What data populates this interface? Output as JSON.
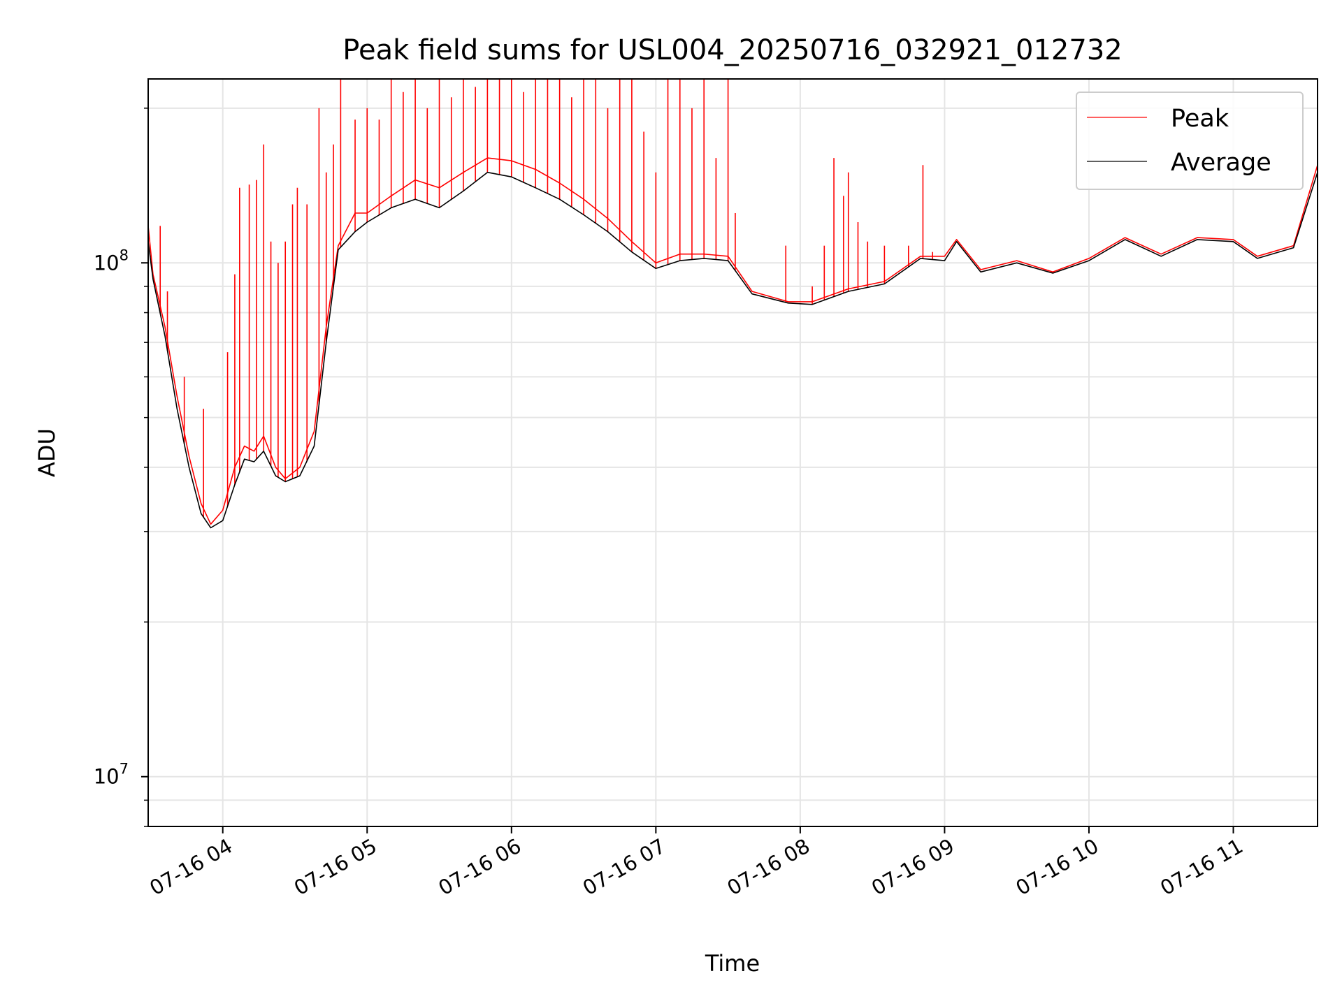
{
  "chart_data": {
    "type": "line",
    "title": "Peak field sums for USL004_20250716_032921_012732",
    "xlabel": "Time",
    "ylabel": "ADU",
    "y_scale": "log",
    "ylim": [
      8000000,
      228000000
    ],
    "xlim": [
      "2025-07-16 03:29",
      "2025-07-16 11:35"
    ],
    "x_ticks": [
      {
        "x": "2025-07-16 04:00",
        "label": "07-16 04"
      },
      {
        "x": "2025-07-16 05:00",
        "label": "07-16 05"
      },
      {
        "x": "2025-07-16 06:00",
        "label": "07-16 06"
      },
      {
        "x": "2025-07-16 07:00",
        "label": "07-16 07"
      },
      {
        "x": "2025-07-16 08:00",
        "label": "07-16 08"
      },
      {
        "x": "2025-07-16 09:00",
        "label": "07-16 09"
      },
      {
        "x": "2025-07-16 10:00",
        "label": "07-16 10"
      },
      {
        "x": "2025-07-16 11:00",
        "label": "07-16 11"
      }
    ],
    "y_ticks": [
      {
        "value": 10000000,
        "base": "10",
        "exp": "7"
      },
      {
        "value": 100000000,
        "base": "10",
        "exp": "8"
      }
    ],
    "grid": true,
    "legend_position": "top-right",
    "series": [
      {
        "name": "Peak",
        "color": "#ff0000",
        "points": [
          [
            "2025-07-16 03:29",
            118000000
          ],
          [
            "2025-07-16 03:31",
            95000000
          ],
          [
            "2025-07-16 03:36",
            75000000
          ],
          [
            "2025-07-16 03:41",
            55000000
          ],
          [
            "2025-07-16 03:46",
            42000000
          ],
          [
            "2025-07-16 03:51",
            34000000
          ],
          [
            "2025-07-16 03:55",
            31000000
          ],
          [
            "2025-07-16 04:00",
            33000000
          ],
          [
            "2025-07-16 04:05",
            40000000
          ],
          [
            "2025-07-16 04:09",
            44000000
          ],
          [
            "2025-07-16 04:13",
            43000000
          ],
          [
            "2025-07-16 04:17",
            46000000
          ],
          [
            "2025-07-16 04:22",
            40000000
          ],
          [
            "2025-07-16 04:26",
            38000000
          ],
          [
            "2025-07-16 04:32",
            40000000
          ],
          [
            "2025-07-16 04:38",
            47000000
          ],
          [
            "2025-07-16 04:43",
            75000000
          ],
          [
            "2025-07-16 04:48",
            108000000
          ],
          [
            "2025-07-16 04:55",
            125000000
          ],
          [
            "2025-07-16 05:00",
            125000000
          ],
          [
            "2025-07-16 05:10",
            135000000
          ],
          [
            "2025-07-16 05:20",
            145000000
          ],
          [
            "2025-07-16 05:30",
            140000000
          ],
          [
            "2025-07-16 05:40",
            150000000
          ],
          [
            "2025-07-16 05:50",
            160000000
          ],
          [
            "2025-07-16 06:00",
            158000000
          ],
          [
            "2025-07-16 06:10",
            152000000
          ],
          [
            "2025-07-16 06:20",
            143000000
          ],
          [
            "2025-07-16 06:30",
            133000000
          ],
          [
            "2025-07-16 06:40",
            122000000
          ],
          [
            "2025-07-16 06:50",
            110000000
          ],
          [
            "2025-07-16 07:00",
            100000000
          ],
          [
            "2025-07-16 07:10",
            104000000
          ],
          [
            "2025-07-16 07:20",
            104000000
          ],
          [
            "2025-07-16 07:30",
            103000000
          ],
          [
            "2025-07-16 07:40",
            88000000
          ],
          [
            "2025-07-16 07:55",
            84000000
          ],
          [
            "2025-07-16 08:05",
            84000000
          ],
          [
            "2025-07-16 08:20",
            89000000
          ],
          [
            "2025-07-16 08:35",
            92000000
          ],
          [
            "2025-07-16 08:50",
            103000000
          ],
          [
            "2025-07-16 09:00",
            103000000
          ],
          [
            "2025-07-16 09:05",
            111000000
          ],
          [
            "2025-07-16 09:15",
            97000000
          ],
          [
            "2025-07-16 09:30",
            101000000
          ],
          [
            "2025-07-16 09:45",
            96000000
          ],
          [
            "2025-07-16 10:00",
            102000000
          ],
          [
            "2025-07-16 10:15",
            112000000
          ],
          [
            "2025-07-16 10:30",
            104000000
          ],
          [
            "2025-07-16 10:45",
            112000000
          ],
          [
            "2025-07-16 11:00",
            111000000
          ],
          [
            "2025-07-16 11:10",
            103000000
          ],
          [
            "2025-07-16 11:25",
            108000000
          ],
          [
            "2025-07-16 11:35",
            155000000
          ]
        ],
        "spikes": [
          [
            "2025-07-16 03:34",
            118000000
          ],
          [
            "2025-07-16 03:37",
            88000000
          ],
          [
            "2025-07-16 03:44",
            60000000
          ],
          [
            "2025-07-16 03:52",
            52000000
          ],
          [
            "2025-07-16 04:02",
            67000000
          ],
          [
            "2025-07-16 04:05",
            95000000
          ],
          [
            "2025-07-16 04:07",
            140000000
          ],
          [
            "2025-07-16 04:11",
            142000000
          ],
          [
            "2025-07-16 04:14",
            145000000
          ],
          [
            "2025-07-16 04:17",
            170000000
          ],
          [
            "2025-07-16 04:20",
            110000000
          ],
          [
            "2025-07-16 04:23",
            100000000
          ],
          [
            "2025-07-16 04:26",
            110000000
          ],
          [
            "2025-07-16 04:29",
            130000000
          ],
          [
            "2025-07-16 04:31",
            140000000
          ],
          [
            "2025-07-16 04:35",
            130000000
          ],
          [
            "2025-07-16 04:40",
            200000000
          ],
          [
            "2025-07-16 04:43",
            150000000
          ],
          [
            "2025-07-16 04:46",
            170000000
          ],
          [
            "2025-07-16 04:49",
            228000000
          ],
          [
            "2025-07-16 04:55",
            190000000
          ],
          [
            "2025-07-16 05:00",
            200000000
          ],
          [
            "2025-07-16 05:05",
            190000000
          ],
          [
            "2025-07-16 05:10",
            228000000
          ],
          [
            "2025-07-16 05:15",
            215000000
          ],
          [
            "2025-07-16 05:20",
            228000000
          ],
          [
            "2025-07-16 05:25",
            200000000
          ],
          [
            "2025-07-16 05:30",
            228000000
          ],
          [
            "2025-07-16 05:35",
            210000000
          ],
          [
            "2025-07-16 05:40",
            228000000
          ],
          [
            "2025-07-16 05:45",
            220000000
          ],
          [
            "2025-07-16 05:50",
            228000000
          ],
          [
            "2025-07-16 05:55",
            228000000
          ],
          [
            "2025-07-16 06:00",
            228000000
          ],
          [
            "2025-07-16 06:05",
            215000000
          ],
          [
            "2025-07-16 06:10",
            228000000
          ],
          [
            "2025-07-16 06:15",
            228000000
          ],
          [
            "2025-07-16 06:20",
            228000000
          ],
          [
            "2025-07-16 06:25",
            210000000
          ],
          [
            "2025-07-16 06:30",
            228000000
          ],
          [
            "2025-07-16 06:35",
            228000000
          ],
          [
            "2025-07-16 06:40",
            200000000
          ],
          [
            "2025-07-16 06:45",
            228000000
          ],
          [
            "2025-07-16 06:50",
            228000000
          ],
          [
            "2025-07-16 06:55",
            180000000
          ],
          [
            "2025-07-16 07:00",
            150000000
          ],
          [
            "2025-07-16 07:05",
            228000000
          ],
          [
            "2025-07-16 07:10",
            228000000
          ],
          [
            "2025-07-16 07:15",
            200000000
          ],
          [
            "2025-07-16 07:20",
            228000000
          ],
          [
            "2025-07-16 07:25",
            160000000
          ],
          [
            "2025-07-16 07:30",
            228000000
          ],
          [
            "2025-07-16 07:33",
            125000000
          ],
          [
            "2025-07-16 07:54",
            108000000
          ],
          [
            "2025-07-16 08:05",
            90000000
          ],
          [
            "2025-07-16 08:10",
            108000000
          ],
          [
            "2025-07-16 08:14",
            160000000
          ],
          [
            "2025-07-16 08:18",
            135000000
          ],
          [
            "2025-07-16 08:20",
            150000000
          ],
          [
            "2025-07-16 08:24",
            120000000
          ],
          [
            "2025-07-16 08:28",
            110000000
          ],
          [
            "2025-07-16 08:35",
            108000000
          ],
          [
            "2025-07-16 08:45",
            108000000
          ],
          [
            "2025-07-16 08:51",
            155000000
          ],
          [
            "2025-07-16 08:55",
            105000000
          ]
        ]
      },
      {
        "name": "Average",
        "color": "#000000",
        "points": [
          [
            "2025-07-16 03:29",
            110000000
          ],
          [
            "2025-07-16 03:31",
            93000000
          ],
          [
            "2025-07-16 03:36",
            72000000
          ],
          [
            "2025-07-16 03:41",
            52000000
          ],
          [
            "2025-07-16 03:46",
            40000000
          ],
          [
            "2025-07-16 03:51",
            32500000
          ],
          [
            "2025-07-16 03:55",
            30500000
          ],
          [
            "2025-07-16 04:00",
            31500000
          ],
          [
            "2025-07-16 04:05",
            37000000
          ],
          [
            "2025-07-16 04:09",
            41500000
          ],
          [
            "2025-07-16 04:13",
            41000000
          ],
          [
            "2025-07-16 04:17",
            43000000
          ],
          [
            "2025-07-16 04:22",
            38500000
          ],
          [
            "2025-07-16 04:26",
            37500000
          ],
          [
            "2025-07-16 04:32",
            38500000
          ],
          [
            "2025-07-16 04:38",
            44000000
          ],
          [
            "2025-07-16 04:43",
            70000000
          ],
          [
            "2025-07-16 04:48",
            106000000
          ],
          [
            "2025-07-16 04:55",
            115000000
          ],
          [
            "2025-07-16 05:00",
            120000000
          ],
          [
            "2025-07-16 05:10",
            128000000
          ],
          [
            "2025-07-16 05:20",
            133000000
          ],
          [
            "2025-07-16 05:30",
            128000000
          ],
          [
            "2025-07-16 05:40",
            138000000
          ],
          [
            "2025-07-16 05:50",
            150000000
          ],
          [
            "2025-07-16 06:00",
            147000000
          ],
          [
            "2025-07-16 06:10",
            140000000
          ],
          [
            "2025-07-16 06:20",
            133000000
          ],
          [
            "2025-07-16 06:30",
            124000000
          ],
          [
            "2025-07-16 06:40",
            115000000
          ],
          [
            "2025-07-16 06:50",
            105000000
          ],
          [
            "2025-07-16 07:00",
            97500000
          ],
          [
            "2025-07-16 07:10",
            101000000
          ],
          [
            "2025-07-16 07:20",
            102000000
          ],
          [
            "2025-07-16 07:30",
            101000000
          ],
          [
            "2025-07-16 07:40",
            87000000
          ],
          [
            "2025-07-16 07:55",
            83500000
          ],
          [
            "2025-07-16 08:05",
            83000000
          ],
          [
            "2025-07-16 08:20",
            88000000
          ],
          [
            "2025-07-16 08:35",
            91000000
          ],
          [
            "2025-07-16 08:50",
            102000000
          ],
          [
            "2025-07-16 09:00",
            101000000
          ],
          [
            "2025-07-16 09:05",
            110000000
          ],
          [
            "2025-07-16 09:15",
            96000000
          ],
          [
            "2025-07-16 09:30",
            100000000
          ],
          [
            "2025-07-16 09:45",
            95500000
          ],
          [
            "2025-07-16 10:00",
            101000000
          ],
          [
            "2025-07-16 10:15",
            111000000
          ],
          [
            "2025-07-16 10:30",
            103000000
          ],
          [
            "2025-07-16 10:45",
            111000000
          ],
          [
            "2025-07-16 11:00",
            110000000
          ],
          [
            "2025-07-16 11:10",
            102000000
          ],
          [
            "2025-07-16 11:25",
            107000000
          ],
          [
            "2025-07-16 11:35",
            150000000
          ]
        ]
      }
    ]
  }
}
